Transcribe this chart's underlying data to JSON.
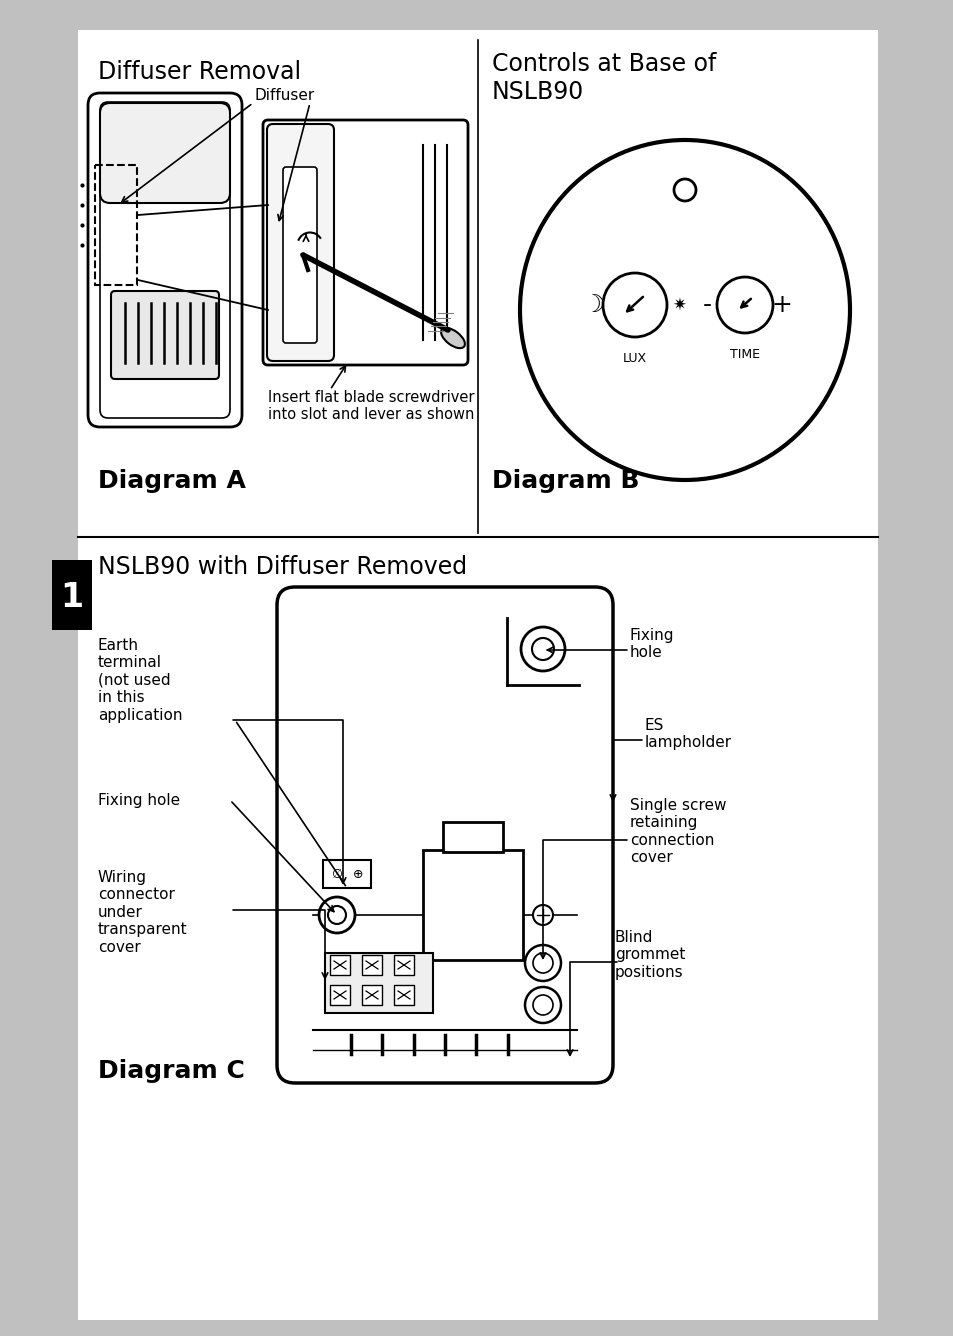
{
  "bg_color": "#c0c0c0",
  "page_bg": "#ffffff",
  "title_a": "Diffuser Removal",
  "title_b": "Controls at Base of\nNSLB90",
  "title_c": "NSLB90 with Diffuser Removed",
  "label_a": "Diagram A",
  "label_b": "Diagram B",
  "label_c": "Diagram C",
  "text_diffuser": "Diffuser",
  "text_insert": "Insert flat blade screwdriver\ninto slot and lever as shown",
  "text_earth": "Earth\nterminal\n(not used\nin this\napplication",
  "text_fixing_l": "Fixing hole",
  "text_fixing_r": "Fixing\nhole",
  "text_es": "ES\nlampholder",
  "text_single": "Single screw\nretaining\nconnection\ncover",
  "text_blind": "Blind\ngrommet\npositions",
  "text_wiring": "Wiring\nconnector\nunder\ntransparent\ncover",
  "text_lux": "LUX",
  "text_time": "TIME"
}
